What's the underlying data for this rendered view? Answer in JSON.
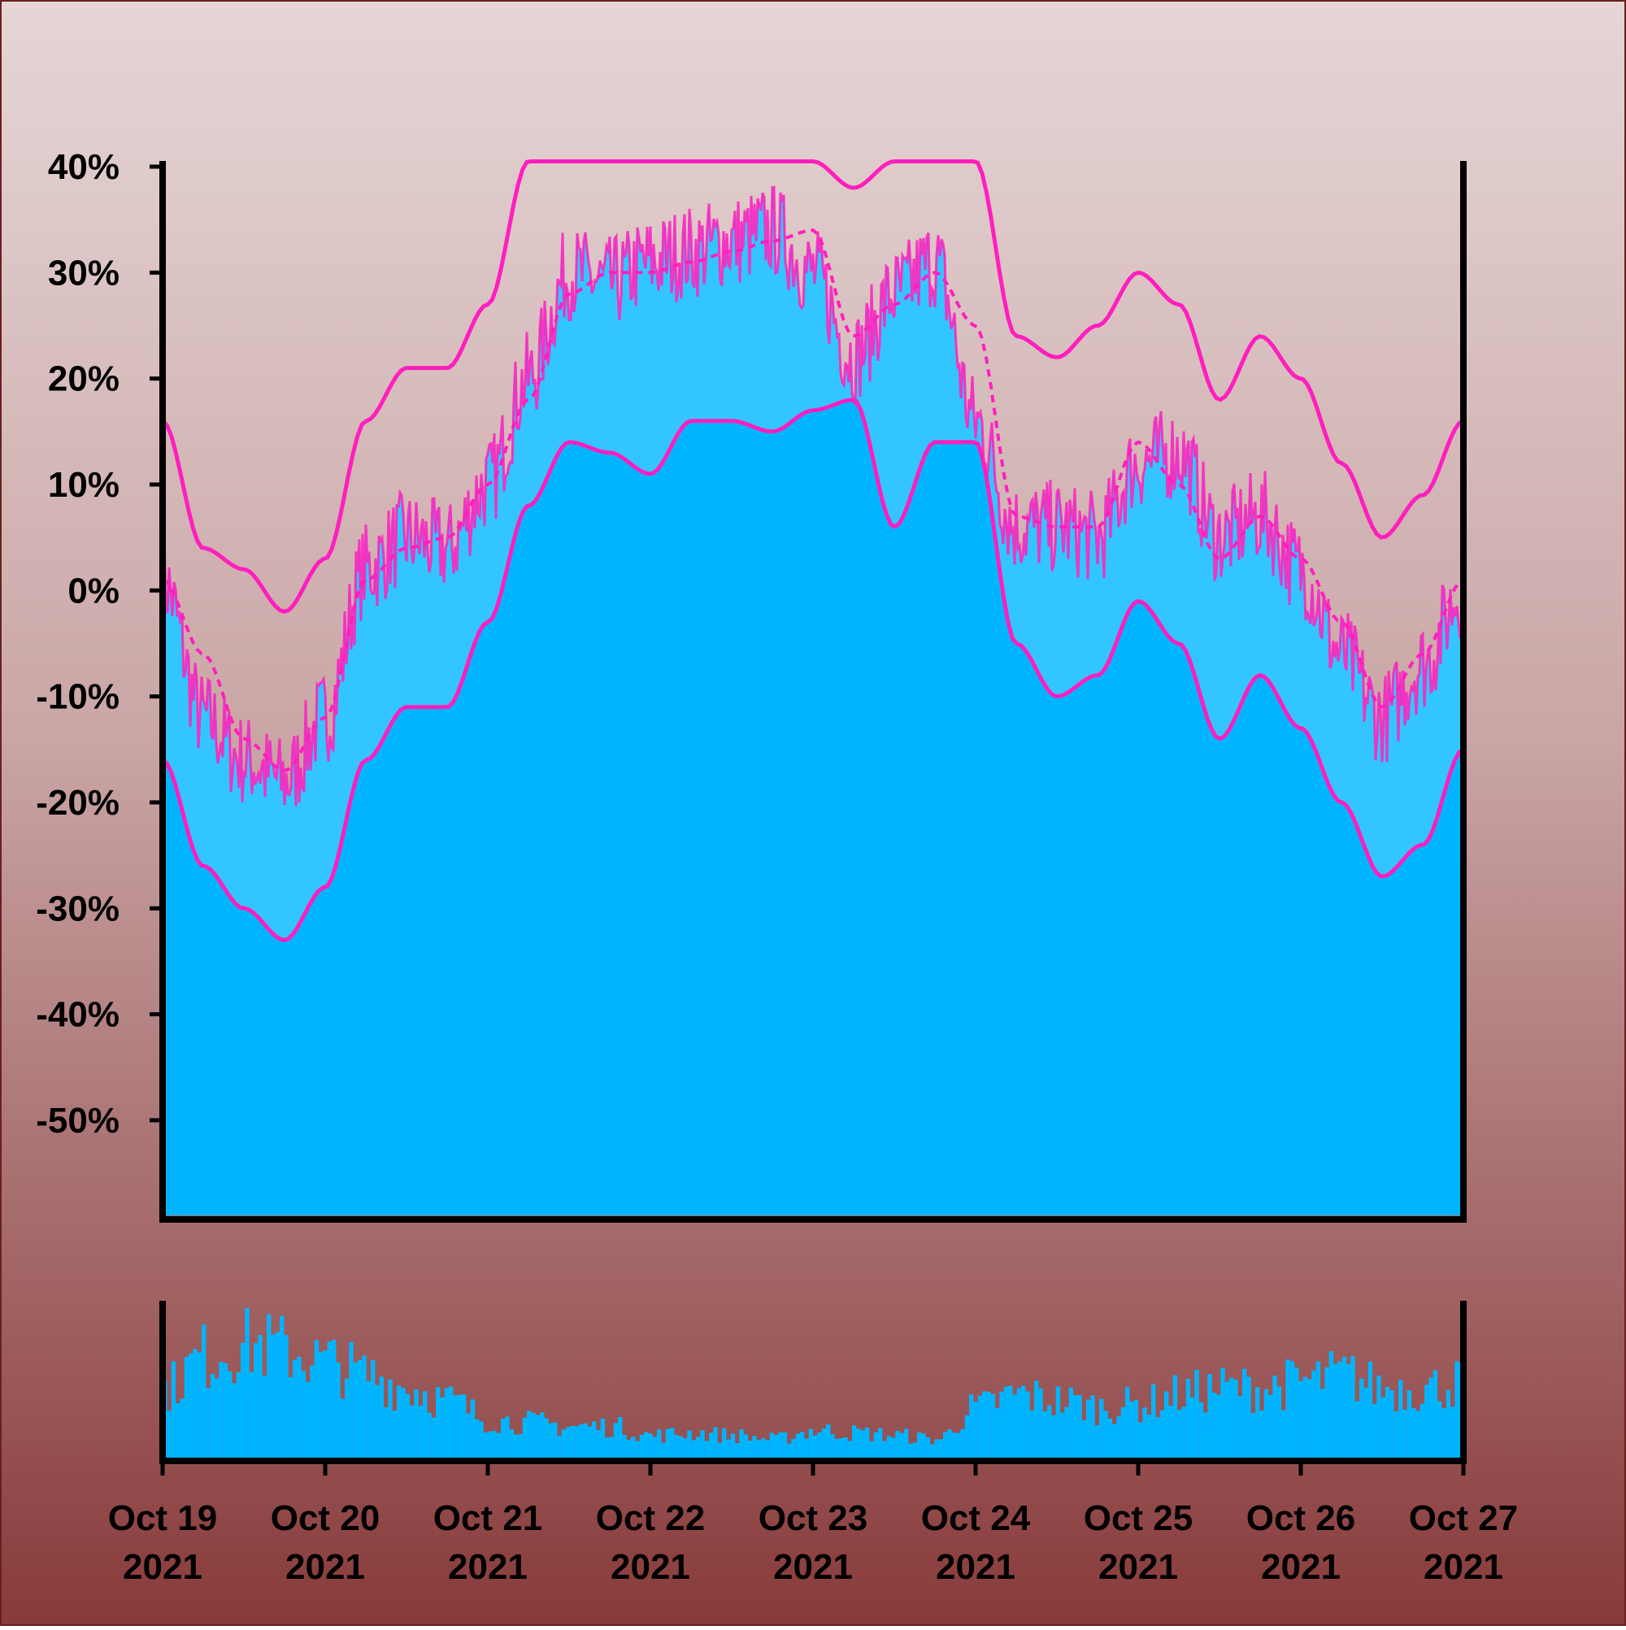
{
  "chart_data": {
    "type": "area",
    "title": "",
    "xlabel": "",
    "ylabel": "",
    "x_tick_labels": [
      [
        "Oct 19",
        "2021"
      ],
      [
        "Oct 20",
        "2021"
      ],
      [
        "Oct 21",
        "2021"
      ],
      [
        "Oct 22",
        "2021"
      ],
      [
        "Oct 23",
        "2021"
      ],
      [
        "Oct 24",
        "2021"
      ],
      [
        "Oct 25",
        "2021"
      ],
      [
        "Oct 26",
        "2021"
      ],
      [
        "Oct 27",
        "2021"
      ]
    ],
    "x_range": [
      "2021-10-19",
      "2021-10-27"
    ],
    "y_tick_labels": [
      "40%",
      "30%",
      "20%",
      "10%",
      "0%",
      "-10%",
      "-20%",
      "-30%",
      "-40%",
      "-50%"
    ],
    "y_ticks": [
      40,
      30,
      20,
      10,
      0,
      -10,
      -20,
      -30,
      -40,
      -50
    ],
    "ylim": [
      -59,
      40.5
    ],
    "grid": false,
    "legend": "none",
    "colors": {
      "background_top": "#e6d6d6",
      "background_mid": "#caa6a6",
      "background_bottom": "#883a3a",
      "area_fill_light": "#33c5ff",
      "area_fill_dark": "#00b5ff",
      "lines": "#ff1fbe",
      "axis": "#000000",
      "volume_bars": "#00b5ff"
    },
    "series_points": {
      "days": [
        0,
        0.25,
        0.5,
        0.75,
        1,
        1.25,
        1.5,
        1.75,
        2,
        2.25,
        2.5,
        2.75,
        3,
        3.25,
        3.5,
        3.75,
        4,
        4.25,
        4.5,
        4.75,
        5,
        5.25,
        5.5,
        5.75,
        6,
        6.25,
        6.5,
        6.75,
        7,
        7.25,
        7.5,
        7.75,
        8
      ],
      "value": [
        1,
        -12,
        -16,
        -18,
        -12,
        2,
        5,
        4,
        10,
        20,
        30,
        29,
        31,
        32,
        33,
        34,
        30,
        22,
        28,
        31,
        16,
        6,
        6,
        5,
        12,
        13,
        5,
        7,
        2,
        -6,
        -12,
        -7,
        0
      ],
      "moving_average": [
        1,
        -6,
        -14,
        -17,
        -12,
        1,
        4,
        5,
        10,
        18,
        28,
        30,
        30,
        31,
        32,
        33,
        34,
        24,
        27,
        30,
        25,
        7,
        6,
        6,
        14,
        10,
        3,
        7,
        3,
        -3,
        -11,
        -6,
        1
      ],
      "band_upper": [
        16,
        4,
        2,
        -2,
        3,
        16,
        21,
        21,
        27,
        40.5,
        40.5,
        40.5,
        40.5,
        40.5,
        40.5,
        40.5,
        40.5,
        38,
        40.5,
        40.5,
        40.5,
        24,
        22,
        25,
        30,
        27,
        18,
        24,
        20,
        12,
        5,
        9,
        16
      ],
      "band_lower": [
        -16,
        -26,
        -30,
        -33,
        -28,
        -16,
        -11,
        -11,
        -3,
        8,
        14,
        13,
        11,
        16,
        16,
        15,
        17,
        18,
        6,
        14,
        14,
        -5,
        -10,
        -8,
        -1,
        -5,
        -14,
        -8,
        -13,
        -20,
        -27,
        -24,
        -15
      ]
    },
    "volume": {
      "days": [
        0,
        0.25,
        0.5,
        0.75,
        1,
        1.25,
        1.5,
        1.75,
        2,
        2.25,
        2.5,
        2.75,
        3,
        3.25,
        3.5,
        3.75,
        4,
        4.25,
        4.5,
        4.75,
        5,
        5.25,
        5.5,
        5.75,
        6,
        6.25,
        6.5,
        6.75,
        7,
        7.25,
        7.5,
        7.75,
        8
      ],
      "relative_level": [
        0.55,
        0.8,
        0.9,
        0.85,
        0.75,
        0.65,
        0.55,
        0.45,
        0.3,
        0.28,
        0.25,
        0.25,
        0.18,
        0.2,
        0.18,
        0.15,
        0.22,
        0.2,
        0.18,
        0.15,
        0.4,
        0.5,
        0.45,
        0.4,
        0.42,
        0.5,
        0.55,
        0.55,
        0.6,
        0.65,
        0.55,
        0.55,
        0.6
      ]
    }
  }
}
